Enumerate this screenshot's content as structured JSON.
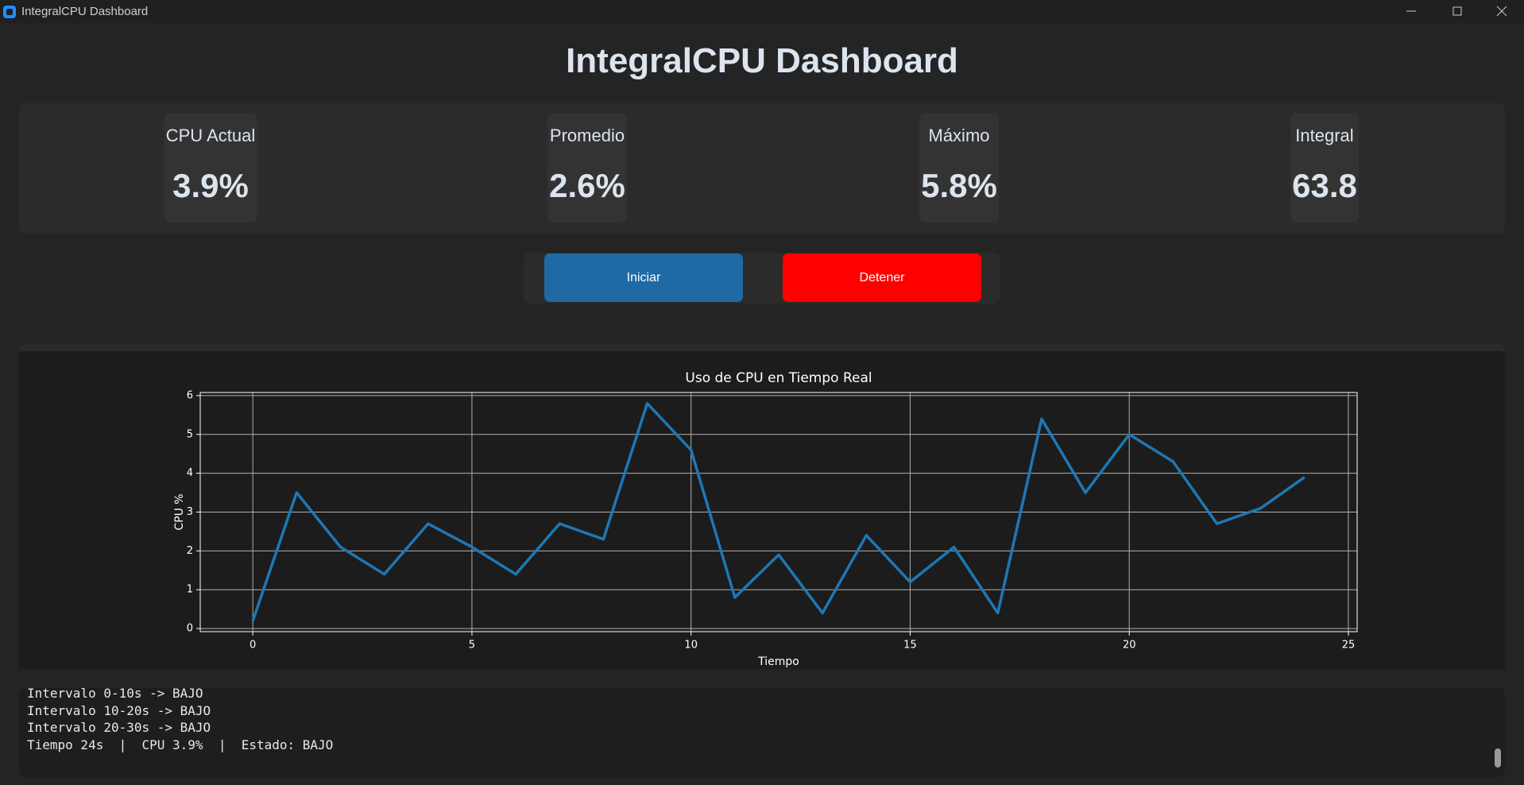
{
  "window": {
    "title": "IntegralCPU Dashboard"
  },
  "header": {
    "title": "IntegralCPU Dashboard"
  },
  "stats": [
    {
      "label": "CPU Actual",
      "value": "3.9%"
    },
    {
      "label": "Promedio",
      "value": "2.6%"
    },
    {
      "label": "Máximo",
      "value": "5.8%"
    },
    {
      "label": "Integral",
      "value": "63.8"
    }
  ],
  "buttons": {
    "start": "Iniciar",
    "stop": "Detener"
  },
  "chart_data": {
    "type": "line",
    "title": "Uso de CPU en Tiempo Real",
    "x_label": "Tiempo",
    "y_label": "CPU %",
    "x": [
      0,
      1,
      2,
      3,
      4,
      5,
      6,
      7,
      8,
      9,
      10,
      11,
      12,
      13,
      14,
      15,
      16,
      17,
      18,
      19,
      20,
      21,
      22,
      23,
      24
    ],
    "series": [
      {
        "name": "CPU",
        "color": "#1f77b4",
        "values": [
          0.2,
          3.5,
          2.1,
          1.4,
          2.7,
          2.1,
          1.4,
          2.7,
          2.3,
          5.8,
          4.6,
          0.8,
          1.9,
          0.4,
          2.4,
          1.2,
          2.1,
          0.4,
          5.4,
          3.5,
          5.0,
          4.3,
          2.7,
          3.1,
          3.9
        ]
      }
    ],
    "xlim": [
      -1.2,
      25.2
    ],
    "xticks": [
      0,
      5,
      10,
      15,
      20,
      25
    ],
    "ylim": [
      -0.08,
      6.08
    ],
    "yticks": [
      0,
      1,
      2,
      3,
      4,
      5,
      6
    ],
    "grid": true
  },
  "log": {
    "lines": [
      "Intervalo 0-10s -> BAJO",
      "Intervalo 10-20s -> BAJO",
      "Intervalo 20-30s -> BAJO",
      "Tiempo 24s  |  CPU 3.9%  |  Estado: BAJO"
    ]
  }
}
